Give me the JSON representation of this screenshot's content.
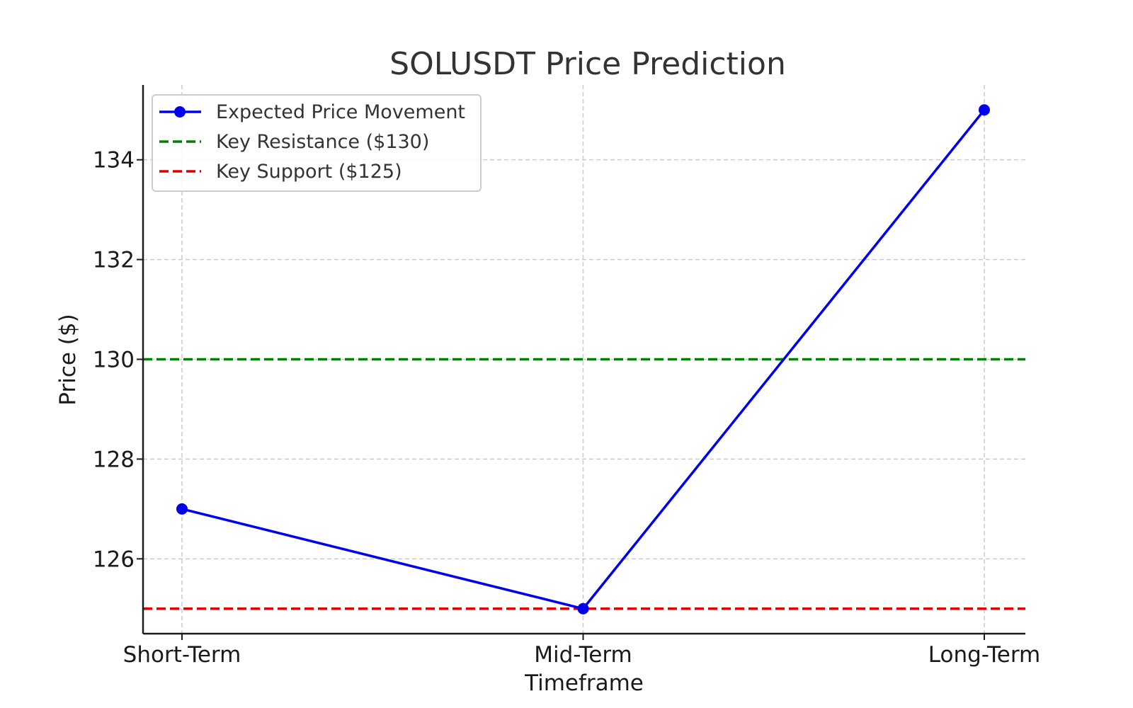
{
  "chart_data": {
    "type": "line",
    "title": "SOLUSDT Price Prediction",
    "xlabel": "Timeframe",
    "ylabel": "Price ($)",
    "categories": [
      "Short-Term",
      "Mid-Term",
      "Long-Term"
    ],
    "series": [
      {
        "name": "Expected Price Movement",
        "values": [
          127,
          125,
          135
        ],
        "color": "#0000ee",
        "style": "solid",
        "marker": "circle"
      }
    ],
    "reference_lines": [
      {
        "name": "Key Resistance ($130)",
        "value": 130,
        "color": "#008000",
        "style": "dashed"
      },
      {
        "name": "Key Support ($125)",
        "value": 125,
        "color": "#e00000",
        "style": "dashed"
      }
    ],
    "yticks": [
      "126",
      "128",
      "130",
      "132",
      "134"
    ],
    "ylim": [
      124.5,
      135.5
    ],
    "grid": true,
    "legend_position": "top-left"
  }
}
